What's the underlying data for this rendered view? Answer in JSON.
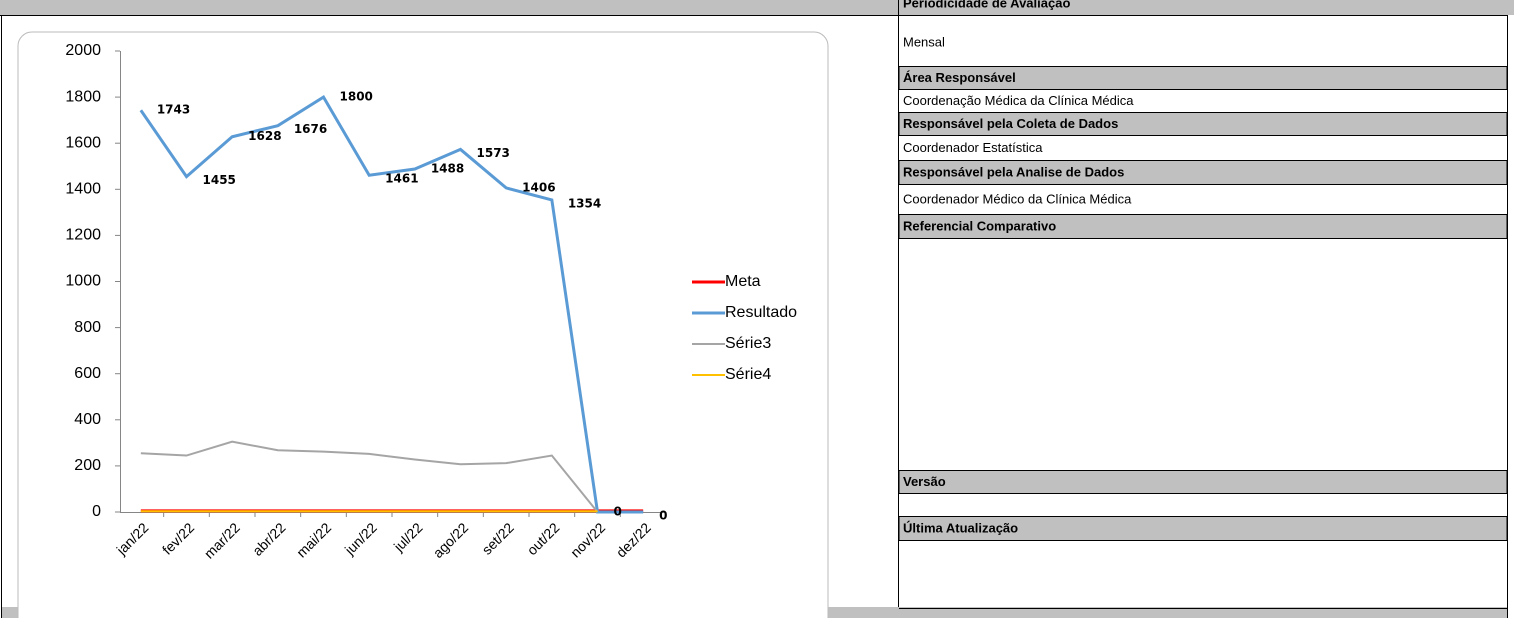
{
  "chart_data": {
    "type": "line",
    "categories": [
      "jan/22",
      "fev/22",
      "mar/22",
      "abr/22",
      "mai/22",
      "jun/22",
      "jul/22",
      "ago/22",
      "set/22",
      "out/22",
      "nov/22",
      "dez/22"
    ],
    "series": [
      {
        "name": "Meta",
        "color": "#ff0000",
        "width": 3,
        "values": [
          5,
          5,
          5,
          5,
          5,
          5,
          5,
          5,
          5,
          5,
          5,
          5
        ]
      },
      {
        "name": "Resultado",
        "color": "#5b9bd5",
        "width": 3,
        "labels": true,
        "values": [
          1743,
          1455,
          1628,
          1676,
          1800,
          1461,
          1488,
          1573,
          1406,
          1354,
          0,
          0
        ]
      },
      {
        "name": "Série3",
        "color": "#a5a5a5",
        "width": 2,
        "values": [
          255,
          245,
          305,
          268,
          262,
          252,
          228,
          207,
          212,
          245,
          0,
          null
        ]
      },
      {
        "name": "Série4",
        "color": "#ffc000",
        "width": 2,
        "values": [
          3,
          3,
          3,
          3,
          3,
          3,
          3,
          3,
          3,
          3,
          3,
          null
        ]
      }
    ],
    "ylim": [
      0,
      2000
    ],
    "yticks": [
      0,
      200,
      400,
      600,
      800,
      1000,
      1200,
      1400,
      1600,
      1800,
      2000
    ],
    "legend": "right"
  },
  "panel": [
    {
      "header": "Periodicidade de Avaliação",
      "value": "Mensal"
    },
    {
      "header": "Área Responsável",
      "value": "Coordenação Médica da Clínica Médica"
    },
    {
      "header": "Responsável pela Coleta de Dados",
      "value": "Coordenador Estatística"
    },
    {
      "header": "Responsável pela Analise de Dados",
      "value": "Coordenador Médico da Clínica Médica"
    },
    {
      "header": "Referencial Comparativo"
    },
    {
      "header": "Versão"
    },
    {
      "header": "Última Atualização"
    }
  ]
}
